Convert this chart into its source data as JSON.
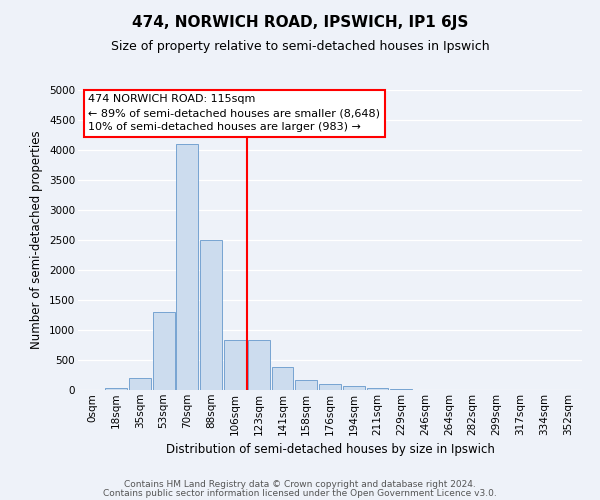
{
  "title": "474, NORWICH ROAD, IPSWICH, IP1 6JS",
  "subtitle": "Size of property relative to semi-detached houses in Ipswich",
  "xlabel": "Distribution of semi-detached houses by size in Ipswich",
  "ylabel": "Number of semi-detached properties",
  "bin_labels": [
    "0sqm",
    "18sqm",
    "35sqm",
    "53sqm",
    "70sqm",
    "88sqm",
    "106sqm",
    "123sqm",
    "141sqm",
    "158sqm",
    "176sqm",
    "194sqm",
    "211sqm",
    "229sqm",
    "246sqm",
    "264sqm",
    "282sqm",
    "299sqm",
    "317sqm",
    "334sqm",
    "352sqm"
  ],
  "bin_values": [
    5,
    30,
    200,
    1300,
    4100,
    2500,
    830,
    830,
    390,
    175,
    100,
    70,
    30,
    10,
    5,
    3,
    2,
    1,
    0,
    0,
    0
  ],
  "bar_color": "#ccdcee",
  "bar_edge_color": "#6699cc",
  "vline_x": 7.0,
  "ylim": [
    0,
    5000
  ],
  "yticks": [
    0,
    500,
    1000,
    1500,
    2000,
    2500,
    3000,
    3500,
    4000,
    4500,
    5000
  ],
  "annotation_title": "474 NORWICH ROAD: 115sqm",
  "annotation_line1": "← 89% of semi-detached houses are smaller (8,648)",
  "annotation_line2": "10% of semi-detached houses are larger (983) →",
  "footer1": "Contains HM Land Registry data © Crown copyright and database right 2024.",
  "footer2": "Contains public sector information licensed under the Open Government Licence v3.0.",
  "bg_color": "#eef2f9",
  "grid_color": "#ffffff",
  "title_fontsize": 11,
  "subtitle_fontsize": 9,
  "axis_label_fontsize": 8.5,
  "tick_fontsize": 7.5,
  "footer_fontsize": 6.5,
  "annotation_fontsize": 8
}
